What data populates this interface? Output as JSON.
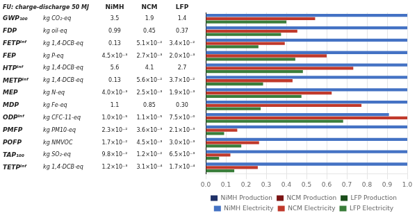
{
  "chart_data": {
    "type": "bar",
    "orientation": "horizontal",
    "categories": [
      "GWP₁₀₀",
      "FDP",
      "FETPᴵⁿᶠ",
      "FEP",
      "HTPᴵⁿᶠ",
      "METPᴵⁿᶠ",
      "MEP",
      "MDP",
      "ODPᴵⁿᶠ",
      "PMFP",
      "POFP",
      "TAP₁₀₀",
      "TETPᴵⁿᶠ"
    ],
    "series": [
      {
        "name": "NiMH Production",
        "color": "#1f3168",
        "values": [
          null,
          null,
          null,
          null,
          null,
          null,
          null,
          null,
          null,
          null,
          null,
          null,
          null
        ]
      },
      {
        "name": "NCM Production",
        "color": "#7b1414",
        "values": [
          null,
          null,
          null,
          null,
          null,
          null,
          null,
          null,
          null,
          null,
          null,
          null,
          null
        ]
      },
      {
        "name": "LFP Production",
        "color": "#1a4d1a",
        "values": [
          null,
          null,
          null,
          null,
          null,
          null,
          null,
          null,
          null,
          null,
          null,
          null,
          null
        ]
      },
      {
        "name": "NiMH Electricity",
        "color": "#4472c4",
        "values": [
          1,
          1,
          1,
          1,
          1,
          1,
          1,
          1,
          0.9090909090909091,
          1,
          1,
          1,
          1
        ]
      },
      {
        "name": "NCM Electricity",
        "color": "#c0392b",
        "values": [
          0.5428571428571429,
          0.4545454545454545,
          0.3923076923076923,
          0.6,
          0.7321428571428571,
          0.4307692307692308,
          0.625,
          0.7727272727272727,
          1,
          0.1565217391304348,
          0.2647058823529412,
          0.1224489795918367,
          0.2583333333333333
        ]
      },
      {
        "name": "LFP Electricity",
        "color": "#3a7d3a",
        "values": [
          0.4,
          0.3737373737373737,
          0.2615384615384615,
          0.4444444444444444,
          0.4821428571428571,
          0.2846153846153846,
          0.475,
          0.2727272727272727,
          0.6818181818181818,
          0.09130434782608696,
          0.1764705882352941,
          0.0663265306122449,
          0.1416666666666667
        ]
      }
    ],
    "xlim": [
      0,
      1
    ],
    "xticks": [
      {
        "value": 0,
        "label": "0.0"
      },
      0.1,
      0.2,
      0.3,
      0.4,
      0.5,
      0.6,
      0.7,
      0.8,
      0.9,
      {
        "value": 1,
        "label": "1.0"
      }
    ],
    "grid": "x",
    "tick_labels": "x",
    "legend": "bottom",
    "table": {
      "header": "FU: charge-discharge 50 MJ",
      "columns": [
        "NiMH",
        "NCM",
        "LFP"
      ],
      "units": [
        "kg CO₂-eq",
        "kg oil-eq",
        "kg 1,4-DCB-eq",
        "kg P-eq",
        "kg 1,4-DCB-eq",
        "kg 1,4-DCB-eq",
        "kg N-eq",
        "kg Fe-eq",
        "kg CFC-11-eq",
        "kg PM10-eq",
        "kg NMVOC",
        "kg SO₂-eq",
        "kg 1,4-DCB-eq"
      ],
      "cells": [
        [
          "3.5",
          "1.9",
          "1.4"
        ],
        [
          "0.99",
          "0.45",
          "0.37"
        ],
        [
          "0.13",
          "5.1×10⁻²",
          "3.4×10⁻²"
        ],
        [
          "4.5×10⁻³",
          "2.7×10⁻³",
          "2.0×10⁻³"
        ],
        [
          "5.6",
          "4.1",
          "2.7"
        ],
        [
          "0.13",
          "5.6×10⁻²",
          "3.7×10⁻²"
        ],
        [
          "4.0×10⁻³",
          "2.5×10⁻³",
          "1.9×10⁻³"
        ],
        [
          "1.1",
          "0.85",
          "0.30"
        ],
        [
          "1.0×10⁻⁵",
          "1.1×10⁻⁵",
          "7.5×10⁻⁶"
        ],
        [
          "2.3×10⁻²",
          "3.6×10⁻³",
          "2.1×10⁻³"
        ],
        [
          "1.7×10⁻²",
          "4.5×10⁻³",
          "3.0×10⁻³"
        ],
        [
          "9.8×10⁻²",
          "1.2×10⁻²",
          "6.5×10⁻³"
        ],
        [
          "1.2×10⁻³",
          "3.1×10⁻⁴",
          "1.7×10⁻⁴"
        ]
      ]
    }
  }
}
